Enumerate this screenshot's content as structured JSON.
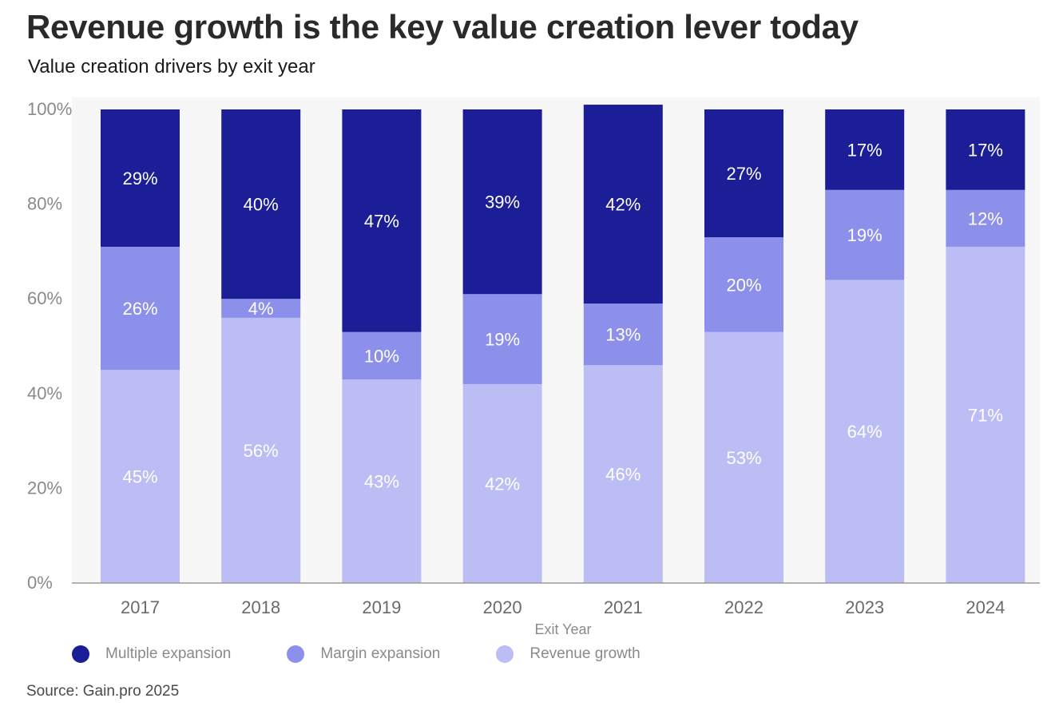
{
  "header": {
    "title": "Revenue growth is the key value creation lever today",
    "subtitle": "Value creation drivers by exit year"
  },
  "footer": {
    "source": "Source: Gain.pro 2025"
  },
  "chart_data": {
    "type": "bar",
    "stacked": true,
    "categories": [
      "2017",
      "2018",
      "2019",
      "2020",
      "2021",
      "2022",
      "2023",
      "2024"
    ],
    "series": [
      {
        "name": "Revenue growth",
        "values": [
          45,
          56,
          43,
          42,
          46,
          53,
          64,
          71
        ],
        "color": "#bcbdf4",
        "label_color": "#ffffff"
      },
      {
        "name": "Margin expansion",
        "values": [
          26,
          4,
          10,
          19,
          13,
          20,
          19,
          12
        ],
        "color": "#8c90ea",
        "label_color": "#ffffff"
      },
      {
        "name": "Multiple expansion",
        "values": [
          29,
          40,
          47,
          39,
          42,
          27,
          17,
          17
        ],
        "color": "#1b1e96",
        "label_color": "#ffffff"
      }
    ],
    "legend_order": [
      "Multiple expansion",
      "Margin expansion",
      "Revenue growth"
    ],
    "xlabel": "Exit Year",
    "ylabel": "",
    "yticks": [
      "0%",
      "20%",
      "40%",
      "60%",
      "80%",
      "100%"
    ],
    "ylim": [
      0,
      100
    ],
    "value_suffix": "%",
    "grid": false,
    "legend_position": "bottom-left"
  }
}
